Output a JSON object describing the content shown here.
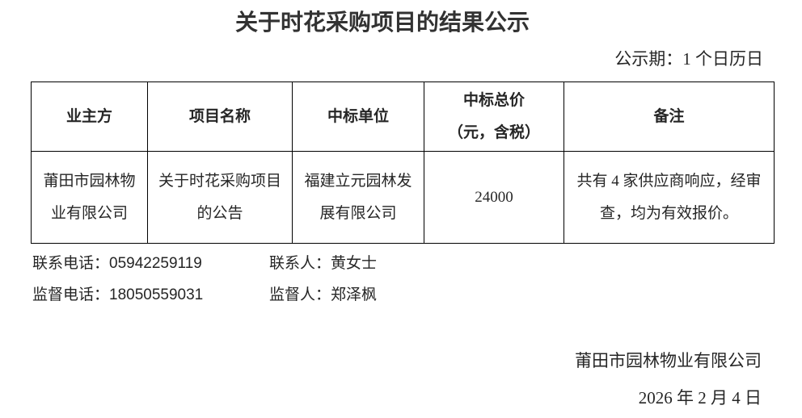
{
  "page": {
    "title": "关于时花采购项目的结果公示",
    "notice_period": "公示期：1 个日历日"
  },
  "table": {
    "headers": [
      "业主方",
      "项目名称",
      "中标单位",
      "中标总价\n（元，含税）",
      "备注"
    ],
    "rows": [
      [
        "莆田市园林物业有限公司",
        "关于时花采购项目的公告",
        "福建立元园林发展有限公司",
        "24000",
        "共有 4 家供应商响应，经审查，均为有效报价。"
      ]
    ]
  },
  "contacts": {
    "phone_label": "联系电话：",
    "phone_value": "05942259119",
    "person_label": "联系人：",
    "person_value": "黄女士",
    "supervision_phone_label": "监督电话：",
    "supervision_phone_value": "18050559031",
    "supervisor_label": "监督人：",
    "supervisor_value": "郑泽枫"
  },
  "signature": {
    "company": "莆田市园林物业有限公司",
    "date": "2026 年 2 月 4 日"
  }
}
